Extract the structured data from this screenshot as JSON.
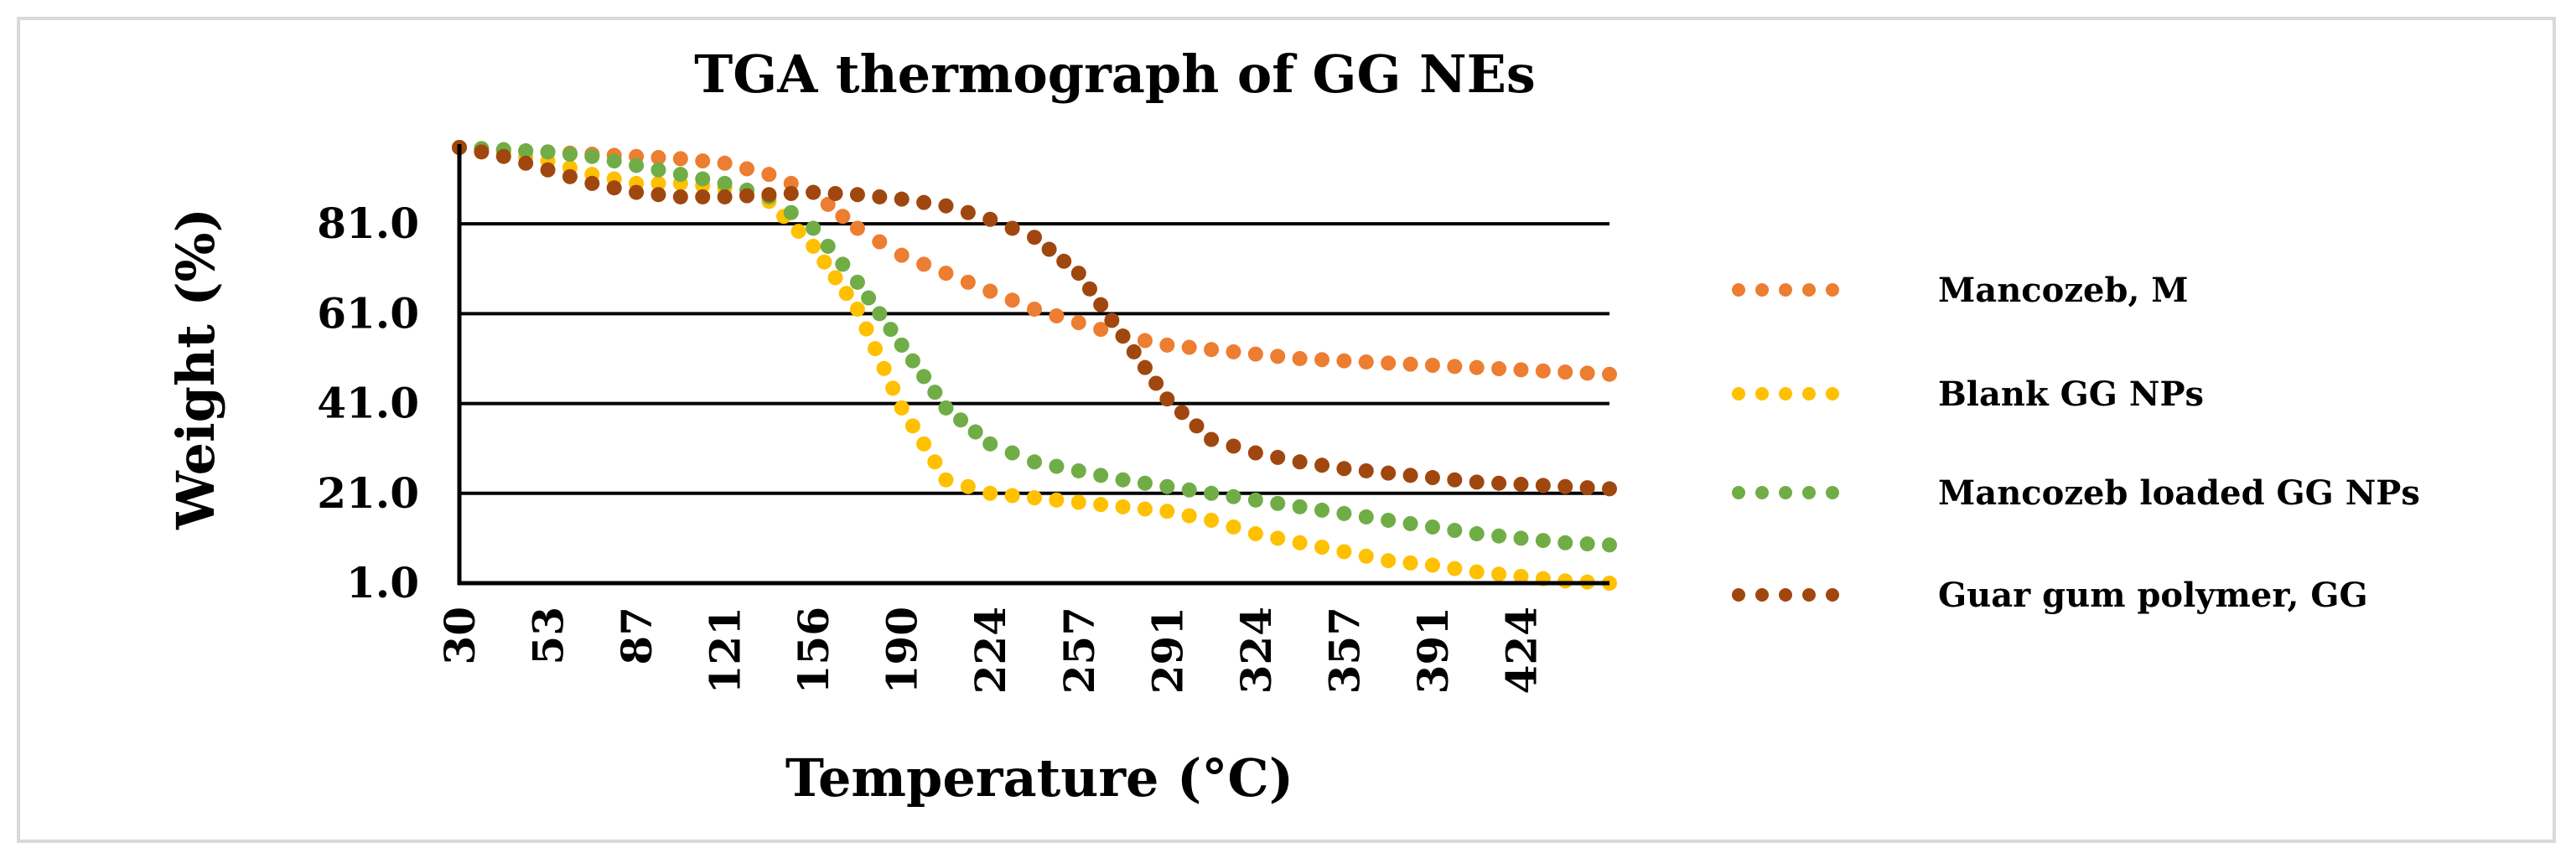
{
  "chart_data": {
    "type": "scatter",
    "title": "TGA thermograph of GG NEs",
    "xlabel": "Temperature (°C)",
    "ylabel": "Weight (%)",
    "x_tick_labels": [
      "30",
      "53",
      "87",
      "121",
      "156",
      "190",
      "224",
      "257",
      "291",
      "324",
      "357",
      "391",
      "424"
    ],
    "y_tick_labels": [
      "1.0",
      "21.0",
      "41.0",
      "61.0",
      "81.0"
    ],
    "y_ticks": [
      1,
      21,
      41,
      61,
      81
    ],
    "ylim": [
      1,
      98
    ],
    "xlim_index": [
      0,
      26
    ],
    "grid": true,
    "legend_position": "right",
    "series": [
      {
        "name": "Mancozeb, M",
        "color": "#ED7D31",
        "values": [
          98,
          97.5,
          97,
          96.5,
          96,
          95.5,
          94.5,
          92,
          88,
          80,
          74,
          70,
          66,
          62,
          59,
          56,
          54,
          53,
          52,
          51,
          50.5,
          50,
          49.5,
          49,
          48.5,
          48,
          47.5
        ]
      },
      {
        "name": "Blank GG NPs",
        "color": "#FFC000",
        "values": [
          98,
          97,
          95,
          92,
          90,
          90,
          89,
          86,
          76,
          62,
          40,
          24,
          21,
          20,
          19,
          18,
          17,
          15,
          12,
          10,
          8,
          6,
          5,
          3.5,
          2.5,
          1.5,
          1
        ]
      },
      {
        "name": "Mancozeb loaded GG NPs",
        "color": "#70AD47",
        "values": [
          98,
          97.5,
          97,
          96,
          94,
          92,
          90,
          87,
          80,
          68,
          54,
          40,
          32,
          28,
          26,
          24,
          22.5,
          21,
          19.5,
          18,
          16.5,
          15,
          13.5,
          12,
          11,
          10,
          9.5
        ]
      },
      {
        "name": "Guar gum polymer, GG",
        "color": "#A0470F",
        "values": [
          98,
          96,
          93,
          90,
          88,
          87,
          87,
          87.5,
          88,
          87.5,
          86.5,
          85,
          82,
          78,
          70,
          56,
          42,
          33,
          30,
          28,
          26.5,
          25.5,
          24.5,
          23.5,
          23,
          22.5,
          22
        ]
      }
    ]
  }
}
